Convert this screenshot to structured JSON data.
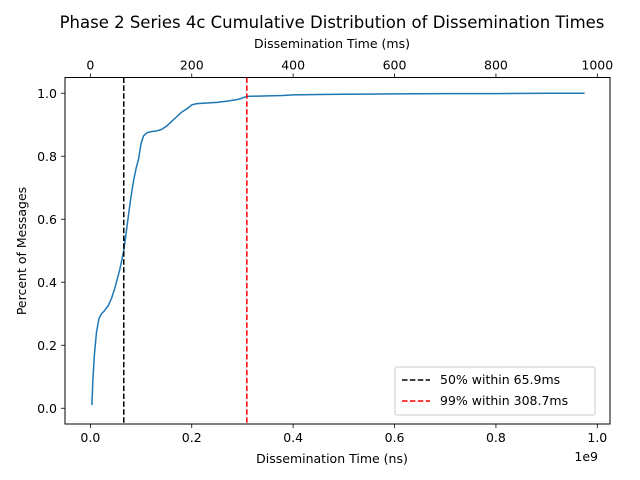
{
  "chart_data": {
    "type": "line",
    "title": "Phase 2 Series 4c Cumulative Distribution of Dissemination Times",
    "xlabel": "Dissemination Time (ns)",
    "x_offset_label": "1e9",
    "top_xlabel": "Dissemination Time (ms)",
    "ylabel": "Percent of Messages",
    "xlim": [
      -50000000,
      1025000000
    ],
    "ylim": [
      -0.05,
      1.05
    ],
    "top_xlim": [
      -50,
      1025
    ],
    "x_ticks": [
      0,
      200000000,
      400000000,
      600000000,
      800000000,
      1000000000
    ],
    "x_tick_labels": [
      "0.0",
      "0.2",
      "0.4",
      "0.6",
      "0.8",
      "1.0"
    ],
    "top_x_ticks": [
      0,
      200,
      400,
      600,
      800,
      1000
    ],
    "top_x_tick_labels": [
      "0",
      "200",
      "400",
      "600",
      "800",
      "1000"
    ],
    "y_ticks": [
      0.0,
      0.2,
      0.4,
      0.6,
      0.8,
      1.0
    ],
    "y_tick_labels": [
      "0.0",
      "0.2",
      "0.4",
      "0.6",
      "0.8",
      "1.0"
    ],
    "grid": false,
    "legend_position": "lower-right",
    "series": [
      {
        "color": "#1f77b4",
        "x": [
          3000000,
          5000000,
          8000000,
          12000000,
          17000000,
          22000000,
          28000000,
          35000000,
          42000000,
          48000000,
          53000000,
          58000000,
          62000000,
          65900000,
          70000000,
          75000000,
          80000000,
          85000000,
          90000000,
          95000000,
          100000000,
          105000000,
          112000000,
          120000000,
          130000000,
          140000000,
          150000000,
          160000000,
          170000000,
          180000000,
          190000000,
          200000000,
          210000000,
          230000000,
          250000000,
          270000000,
          290000000,
          300000000,
          308700000,
          330000000,
          360000000,
          380000000,
          400000000,
          450000000,
          500000000,
          600000000,
          700000000,
          800000000,
          900000000,
          975000000
        ],
        "y": [
          0.01,
          0.09,
          0.17,
          0.24,
          0.285,
          0.3,
          0.31,
          0.325,
          0.35,
          0.38,
          0.41,
          0.44,
          0.47,
          0.5,
          0.55,
          0.61,
          0.67,
          0.72,
          0.76,
          0.79,
          0.84,
          0.865,
          0.875,
          0.878,
          0.88,
          0.885,
          0.895,
          0.91,
          0.925,
          0.94,
          0.95,
          0.963,
          0.967,
          0.969,
          0.971,
          0.975,
          0.98,
          0.985,
          0.99,
          0.991,
          0.992,
          0.993,
          0.995,
          0.996,
          0.997,
          0.998,
          0.999,
          0.999,
          1.0,
          1.0
        ]
      }
    ],
    "reference_lines": [
      {
        "label": "50%  within 65.9ms",
        "x": 65900000,
        "color": "#000000"
      },
      {
        "label": "99%  within 308.7ms",
        "x": 308700000,
        "color": "#ff0000"
      }
    ]
  }
}
